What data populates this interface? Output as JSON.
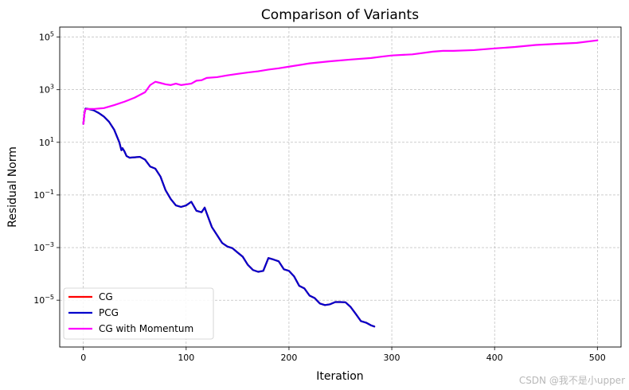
{
  "chart_data": {
    "type": "line",
    "title": "Comparison of Variants",
    "xlabel": "Iteration",
    "ylabel": "Residual Norm",
    "yscale": "log",
    "xlim": [
      -23,
      523
    ],
    "ylim": [
      1.66e-07,
      240000.0
    ],
    "xticks": [
      0,
      100,
      200,
      300,
      400,
      500
    ],
    "yticks": [
      {
        "value": 1e-05,
        "base": "10",
        "exp": "−5"
      },
      {
        "value": 0.001,
        "base": "10",
        "exp": "−3"
      },
      {
        "value": 0.1,
        "base": "10",
        "exp": "−1"
      },
      {
        "value": 10,
        "base": "10",
        "exp": "1"
      },
      {
        "value": 1000,
        "base": "10",
        "exp": "3"
      },
      {
        "value": 100000,
        "base": "10",
        "exp": "5"
      }
    ],
    "grid": true,
    "legend_position": "lower-left",
    "series": [
      {
        "name": "CG",
        "color": "#ff0000",
        "x": [
          0,
          1,
          2,
          5,
          10,
          15,
          20,
          25,
          30,
          35,
          37,
          38,
          40,
          42,
          45,
          50,
          55,
          60,
          65,
          70,
          75,
          80,
          85,
          90,
          95,
          100,
          105,
          110,
          115,
          118,
          120,
          125,
          130,
          135,
          140,
          145,
          150,
          155,
          160,
          165,
          170,
          175,
          180,
          185,
          190,
          195,
          200,
          205,
          210,
          215,
          220,
          225,
          230,
          235,
          240,
          245,
          250,
          255,
          260,
          265,
          270,
          275,
          280,
          283
        ],
        "y": [
          50,
          120,
          190,
          185,
          165,
          130,
          95,
          60,
          30,
          10,
          5,
          6,
          4.5,
          3,
          2.6,
          2.7,
          2.8,
          2.2,
          1.2,
          1,
          0.5,
          0.15,
          0.07,
          0.04,
          0.035,
          0.04,
          0.055,
          0.025,
          0.022,
          0.033,
          0.02,
          0.006,
          0.003,
          0.0015,
          0.0011,
          0.00095,
          0.00065,
          0.00045,
          0.00022,
          0.00014,
          0.00012,
          0.00013,
          0.0004,
          0.00035,
          0.0003,
          0.00015,
          0.00013,
          8e-05,
          3.5e-05,
          2.8e-05,
          1.5e-05,
          1.2e-05,
          7.5e-06,
          6.5e-06,
          7e-06,
          8.5e-06,
          8.5e-06,
          8.3e-06,
          5.5e-06,
          3e-06,
          1.6e-06,
          1.4e-06,
          1.1e-06,
          1e-06
        ]
      },
      {
        "name": "PCG",
        "color": "#0000cc",
        "x": [
          0,
          1,
          2,
          5,
          10,
          15,
          20,
          25,
          30,
          35,
          37,
          38,
          40,
          42,
          45,
          50,
          55,
          60,
          65,
          70,
          75,
          80,
          85,
          90,
          95,
          100,
          105,
          110,
          115,
          118,
          120,
          125,
          130,
          135,
          140,
          145,
          150,
          155,
          160,
          165,
          170,
          175,
          180,
          185,
          190,
          195,
          200,
          205,
          210,
          215,
          220,
          225,
          230,
          235,
          240,
          245,
          250,
          255,
          260,
          265,
          270,
          275,
          280,
          283
        ],
        "y": [
          50,
          120,
          190,
          185,
          165,
          130,
          95,
          60,
          30,
          10,
          5,
          6,
          4.5,
          3,
          2.6,
          2.7,
          2.8,
          2.2,
          1.2,
          1,
          0.5,
          0.15,
          0.07,
          0.04,
          0.035,
          0.04,
          0.055,
          0.025,
          0.022,
          0.033,
          0.02,
          0.006,
          0.003,
          0.0015,
          0.0011,
          0.00095,
          0.00065,
          0.00045,
          0.00022,
          0.00014,
          0.00012,
          0.00013,
          0.0004,
          0.00035,
          0.0003,
          0.00015,
          0.00013,
          8e-05,
          3.5e-05,
          2.8e-05,
          1.5e-05,
          1.2e-05,
          7.5e-06,
          6.5e-06,
          7e-06,
          8.5e-06,
          8.5e-06,
          8.3e-06,
          5.5e-06,
          3e-06,
          1.6e-06,
          1.4e-06,
          1.1e-06,
          1e-06
        ]
      },
      {
        "name": "CG with Momentum",
        "color": "#ff00ff",
        "x": [
          0,
          1,
          2,
          5,
          10,
          20,
          30,
          40,
          50,
          60,
          65,
          70,
          75,
          80,
          85,
          90,
          95,
          100,
          105,
          110,
          115,
          120,
          130,
          140,
          150,
          160,
          170,
          180,
          190,
          200,
          220,
          240,
          260,
          280,
          290,
          300,
          320,
          340,
          350,
          360,
          380,
          400,
          420,
          440,
          460,
          480,
          500
        ],
        "y": [
          50,
          120,
          180,
          185,
          185,
          200,
          260,
          350,
          500,
          800,
          1500,
          2000,
          1800,
          1600,
          1500,
          1700,
          1500,
          1600,
          1700,
          2200,
          2300,
          2800,
          3000,
          3500,
          4000,
          4500,
          5000,
          5800,
          6500,
          7500,
          10000,
          12000,
          14000,
          16000,
          18000,
          20000,
          22000,
          28000,
          30000,
          30000,
          32000,
          37000,
          42000,
          50000,
          55000,
          60000,
          75000
        ]
      }
    ],
    "watermark": "CSDN @我不是小upper"
  }
}
